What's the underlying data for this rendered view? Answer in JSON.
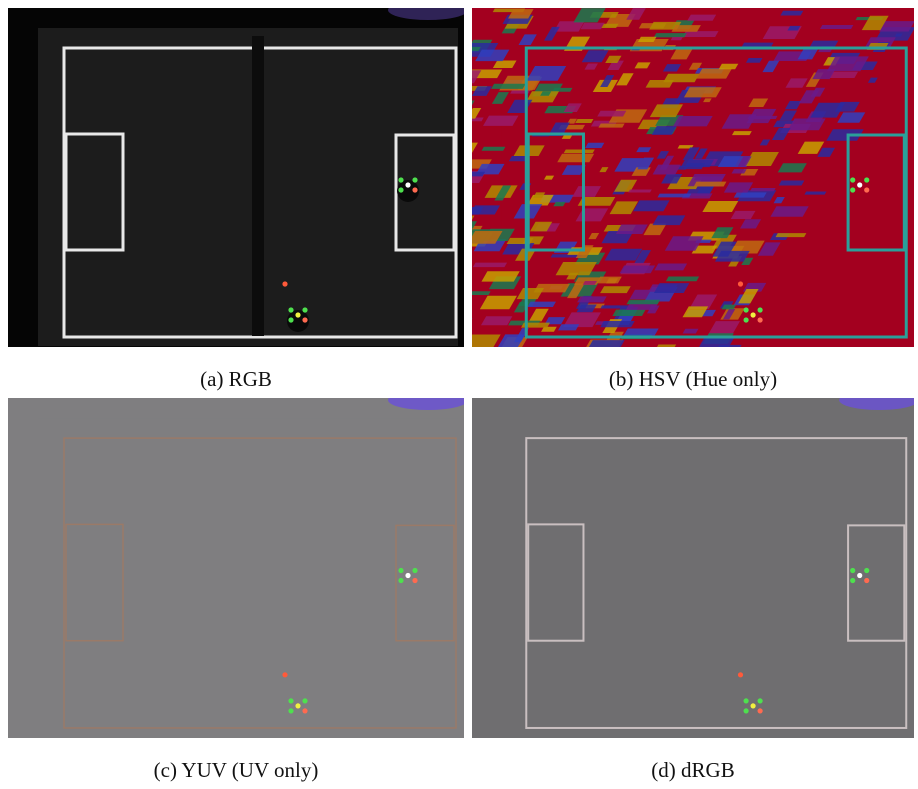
{
  "figure": {
    "panels": [
      {
        "caption": "(a) RGB"
      },
      {
        "caption": "(b) HSV (Hue only)"
      },
      {
        "caption": "(c) YUV (UV only)"
      },
      {
        "caption": "(d) dRGB"
      }
    ]
  }
}
